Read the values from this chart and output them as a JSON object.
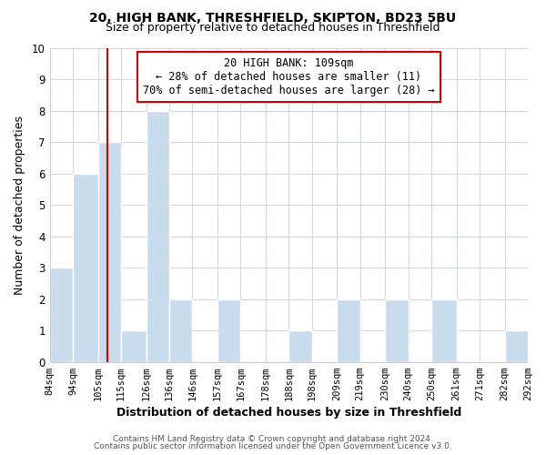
{
  "title": "20, HIGH BANK, THRESHFIELD, SKIPTON, BD23 5BU",
  "subtitle": "Size of property relative to detached houses in Threshfield",
  "xlabel": "Distribution of detached houses by size in Threshfield",
  "ylabel": "Number of detached properties",
  "bar_edges": [
    84,
    94,
    105,
    115,
    126,
    136,
    146,
    157,
    167,
    178,
    188,
    198,
    209,
    219,
    230,
    240,
    250,
    261,
    271,
    282,
    292
  ],
  "bar_heights": [
    3,
    6,
    7,
    1,
    8,
    2,
    0,
    2,
    0,
    0,
    1,
    0,
    2,
    0,
    2,
    0,
    2,
    0,
    0,
    1
  ],
  "bar_color": "#c8dced",
  "bar_edgecolor": "#ffffff",
  "bar_linewidth": 1.0,
  "grid_color": "#d0d8e8",
  "background_color": "#ffffff",
  "axes_facecolor": "#ffffff",
  "property_line_x": 109,
  "property_line_color": "#cc0000",
  "annotation_line1": "20 HIGH BANK: 109sqm",
  "annotation_line2": "← 28% of detached houses are smaller (11)",
  "annotation_line3": "70% of semi-detached houses are larger (28) →",
  "annotation_fontsize": 8.5,
  "annotation_box_color": "#cc0000",
  "ylim": [
    0,
    10
  ],
  "yticks": [
    0,
    1,
    2,
    3,
    4,
    5,
    6,
    7,
    8,
    9,
    10
  ],
  "footer_line1": "Contains HM Land Registry data © Crown copyright and database right 2024.",
  "footer_line2": "Contains public sector information licensed under the Open Government Licence v3.0.",
  "tick_labels": [
    "84sqm",
    "94sqm",
    "105sqm",
    "115sqm",
    "126sqm",
    "136sqm",
    "146sqm",
    "157sqm",
    "167sqm",
    "178sqm",
    "188sqm",
    "198sqm",
    "209sqm",
    "219sqm",
    "230sqm",
    "240sqm",
    "250sqm",
    "261sqm",
    "271sqm",
    "282sqm",
    "292sqm"
  ],
  "title_fontsize": 10,
  "subtitle_fontsize": 9,
  "xlabel_fontsize": 9,
  "ylabel_fontsize": 9,
  "footer_fontsize": 6.5,
  "footer_color": "#555555"
}
